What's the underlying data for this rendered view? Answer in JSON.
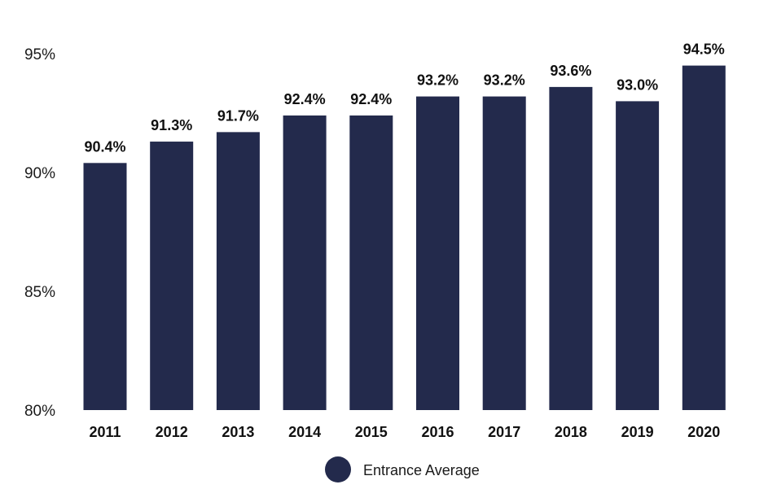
{
  "chart_data": {
    "type": "bar",
    "categories": [
      "2011",
      "2012",
      "2013",
      "2014",
      "2015",
      "2016",
      "2017",
      "2018",
      "2019",
      "2020"
    ],
    "series": [
      {
        "name": "Entrance Average",
        "values": [
          90.4,
          91.3,
          91.7,
          92.4,
          92.4,
          93.2,
          93.2,
          93.6,
          93.0,
          94.5
        ],
        "data_labels": [
          "90.4%",
          "91.3%",
          "91.7%",
          "92.4%",
          "92.4%",
          "93.2%",
          "93.2%",
          "93.6%",
          "93.0%",
          "94.5%"
        ]
      }
    ],
    "ylim": [
      80,
      95
    ],
    "yticks": [
      80,
      85,
      90,
      95
    ],
    "ytick_labels": [
      "80%",
      "85%",
      "90%",
      "95%"
    ],
    "grid": false,
    "legend_placement": "bottom-center",
    "bar_color": "#232a4c"
  },
  "legend": {
    "label": "Entrance Average"
  }
}
